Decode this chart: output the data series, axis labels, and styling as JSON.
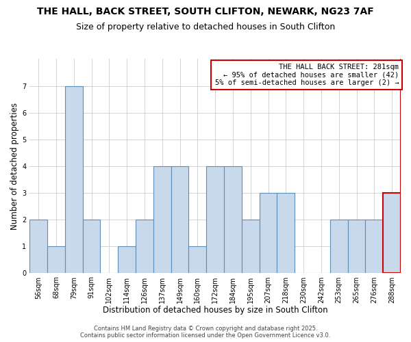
{
  "title": "THE HALL, BACK STREET, SOUTH CLIFTON, NEWARK, NG23 7AF",
  "subtitle": "Size of property relative to detached houses in South Clifton",
  "xlabel": "Distribution of detached houses by size in South Clifton",
  "ylabel": "Number of detached properties",
  "categories": [
    "56sqm",
    "68sqm",
    "79sqm",
    "91sqm",
    "102sqm",
    "114sqm",
    "126sqm",
    "137sqm",
    "149sqm",
    "160sqm",
    "172sqm",
    "184sqm",
    "195sqm",
    "207sqm",
    "218sqm",
    "230sqm",
    "242sqm",
    "253sqm",
    "265sqm",
    "276sqm",
    "288sqm"
  ],
  "values": [
    2,
    1,
    7,
    2,
    0,
    1,
    2,
    4,
    4,
    1,
    4,
    4,
    2,
    3,
    3,
    0,
    0,
    2,
    2,
    2,
    3
  ],
  "highlight_index": 20,
  "bar_color": "#c8d9ec",
  "bar_edge_color": "#5b8db8",
  "highlight_edge_color": "#cc0000",
  "annotation_title": "THE HALL BACK STREET: 281sqm",
  "annotation_line1": "← 95% of detached houses are smaller (42)",
  "annotation_line2": "5% of semi-detached houses are larger (2) →",
  "annotation_box_edge": "#cc0000",
  "ylim": [
    0,
    8
  ],
  "yticks": [
    0,
    1,
    2,
    3,
    4,
    5,
    6,
    7
  ],
  "title_fontsize": 10,
  "subtitle_fontsize": 9,
  "xlabel_fontsize": 8.5,
  "ylabel_fontsize": 8.5,
  "tick_fontsize": 7,
  "annotation_fontsize": 7.5,
  "background_color": "#ffffff",
  "grid_color": "#cccccc",
  "footer_line1": "Contains HM Land Registry data © Crown copyright and database right 2025.",
  "footer_line2": "Contains public sector information licensed under the Open Government Licence v3.0."
}
